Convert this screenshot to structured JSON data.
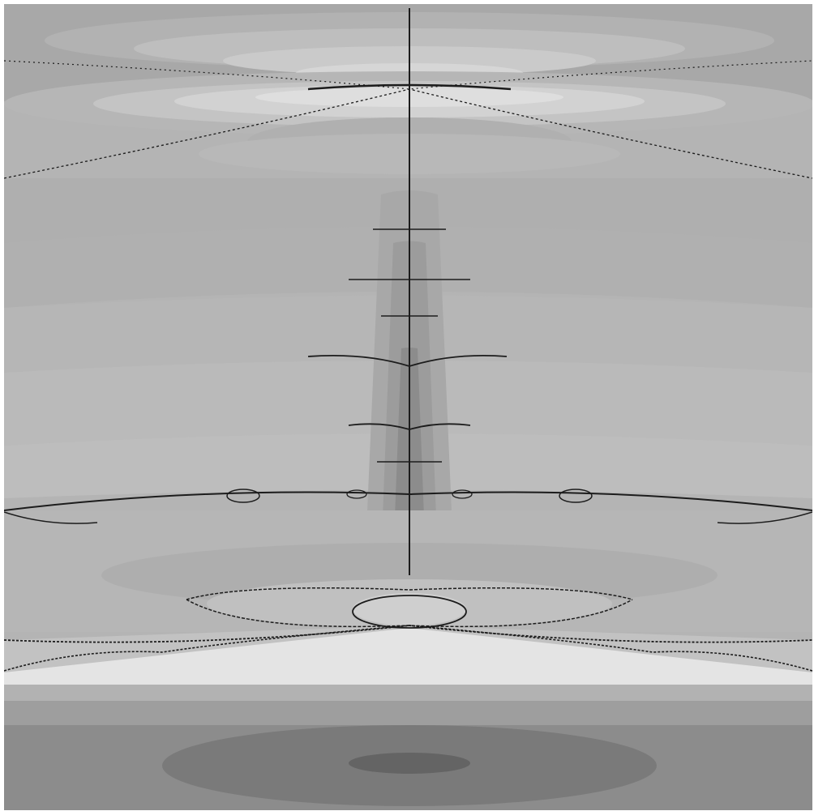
{
  "image": {
    "subject": "fractal-render",
    "palette": [
      "#ffffff",
      "#e8e8e8",
      "#d6d6d6",
      "#c7c7c7",
      "#b8b8b8",
      "#a9a9a9",
      "#9a9a9a",
      "#8a8a8a",
      "#7a7a7a",
      "#6a6a6a",
      "#505050",
      "#1a1a1a"
    ],
    "border_color": "#ffffff"
  }
}
